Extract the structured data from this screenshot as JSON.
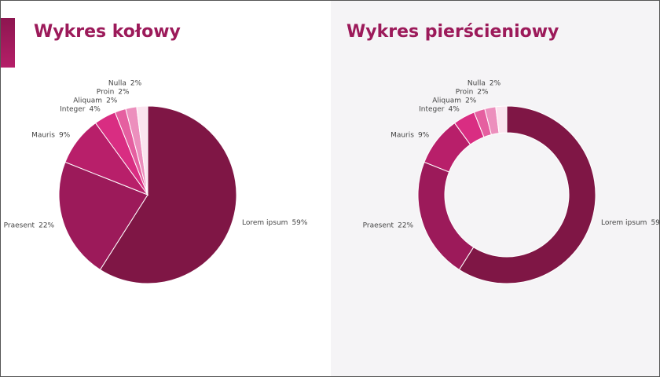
{
  "chart_data": [
    {
      "type": "pie",
      "title": "Wykres kołowy",
      "categories": [
        "Lorem ipsum",
        "Praesent",
        "Mauris",
        "Integer",
        "Aliquam",
        "Proin",
        "Nulla"
      ],
      "values": [
        59,
        22,
        9,
        4,
        2,
        2,
        2
      ],
      "value_labels": [
        "59%",
        "22%",
        "9%",
        "4%",
        "2%",
        "2%",
        "2%"
      ],
      "colors": [
        "#7f1645",
        "#9c1a5a",
        "#b81f6a",
        "#d92d82",
        "#e55fa0",
        "#ec8fbd",
        "#fbe4ef"
      ]
    },
    {
      "type": "donut",
      "title": "Wykres pierścieniowy",
      "categories": [
        "Lorem ipsum",
        "Praesent",
        "Mauris",
        "Integer",
        "Aliquam",
        "Proin",
        "Nulla"
      ],
      "values": [
        59,
        22,
        9,
        4,
        2,
        2,
        2
      ],
      "value_labels": [
        "59%",
        "22%",
        "9%",
        "4%",
        "2%",
        "2%",
        "2%"
      ],
      "colors": [
        "#7f1645",
        "#9c1a5a",
        "#b81f6a",
        "#d92d82",
        "#e55fa0",
        "#ec8fbd",
        "#fbe4ef"
      ]
    }
  ]
}
